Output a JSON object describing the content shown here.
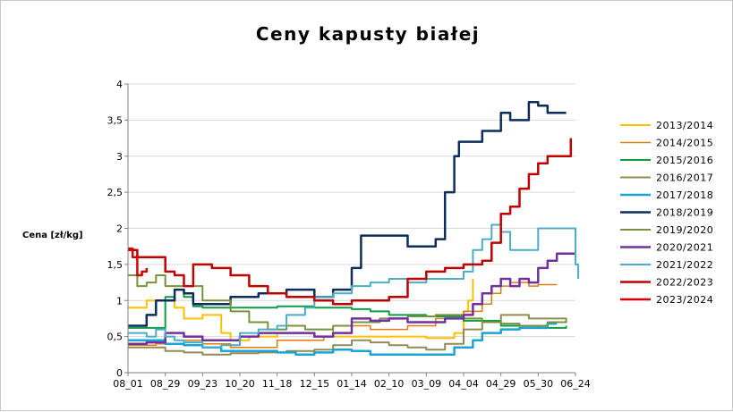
{
  "chart_data": {
    "type": "line",
    "title": "Ceny kapusty białej",
    "xlabel": "",
    "ylabel": "Cena [zł/kg]",
    "ylim": [
      0,
      4
    ],
    "yticks": [
      0,
      0.5,
      1,
      1.5,
      2,
      2.5,
      3,
      3.5,
      4
    ],
    "ytick_labels": [
      "0",
      "0,5",
      "1",
      "1,5",
      "2",
      "2,5",
      "3",
      "3,5",
      "4"
    ],
    "xticks": [
      0,
      4,
      8,
      12,
      16,
      20,
      24,
      28,
      32,
      36,
      40,
      44,
      48
    ],
    "xtick_labels": [
      "08_01",
      "08_29",
      "09_23",
      "10_20",
      "11_18",
      "12_15",
      "01_14",
      "02_10",
      "03_09",
      "04_04",
      "04_29",
      "05_30",
      "06_24"
    ],
    "grid": true,
    "legend_position": "right",
    "series": [
      {
        "name": "2013/2014",
        "color": "#ffc000",
        "width": 2,
        "points": [
          [
            0,
            0.9
          ],
          [
            1.5,
            0.9
          ],
          [
            2,
            1.0
          ],
          [
            4,
            1.0
          ],
          [
            5,
            0.9
          ],
          [
            6,
            0.75
          ],
          [
            8,
            0.8
          ],
          [
            10,
            0.55
          ],
          [
            11,
            0.45
          ],
          [
            13,
            0.5
          ],
          [
            16,
            0.55
          ],
          [
            20,
            0.5
          ],
          [
            24,
            0.5
          ],
          [
            28,
            0.5
          ],
          [
            32,
            0.48
          ],
          [
            35,
            0.55
          ],
          [
            36,
            0.85
          ],
          [
            36.5,
            1.0
          ],
          [
            37,
            1.3
          ]
        ]
      },
      {
        "name": "2014/2015",
        "color": "#e07b12",
        "width": 1.5,
        "points": [
          [
            0,
            0.38
          ],
          [
            3,
            0.4
          ],
          [
            6,
            0.45
          ],
          [
            8,
            0.4
          ],
          [
            11,
            0.35
          ],
          [
            13,
            0.35
          ],
          [
            16,
            0.45
          ],
          [
            21,
            0.5
          ],
          [
            22,
            0.65
          ],
          [
            24,
            0.65
          ],
          [
            26,
            0.6
          ],
          [
            30,
            0.65
          ],
          [
            33,
            0.75
          ],
          [
            36,
            0.85
          ],
          [
            38,
            0.95
          ],
          [
            39,
            1.1
          ],
          [
            40,
            1.2
          ],
          [
            41,
            1.25
          ],
          [
            43,
            1.2
          ],
          [
            44,
            1.22
          ],
          [
            46,
            1.22
          ]
        ]
      },
      {
        "name": "2015/2016",
        "color": "#119b45",
        "width": 2,
        "points": [
          [
            0,
            0.62
          ],
          [
            4,
            1.05
          ],
          [
            5,
            1.15
          ],
          [
            6,
            1.05
          ],
          [
            7,
            0.92
          ],
          [
            8,
            0.9
          ],
          [
            10,
            0.9
          ],
          [
            11,
            0.9
          ],
          [
            13,
            0.9
          ],
          [
            16,
            0.92
          ],
          [
            20,
            0.9
          ],
          [
            22,
            0.9
          ],
          [
            24,
            0.88
          ],
          [
            26,
            0.85
          ],
          [
            28,
            0.8
          ],
          [
            32,
            0.78
          ],
          [
            36,
            0.72
          ],
          [
            40,
            0.65
          ],
          [
            44,
            0.62
          ],
          [
            47,
            0.65
          ]
        ]
      },
      {
        "name": "2016/2017",
        "color": "#948a54",
        "width": 2,
        "points": [
          [
            0,
            0.35
          ],
          [
            4,
            0.3
          ],
          [
            6,
            0.28
          ],
          [
            8,
            0.25
          ],
          [
            11,
            0.27
          ],
          [
            14,
            0.28
          ],
          [
            17,
            0.3
          ],
          [
            20,
            0.32
          ],
          [
            22,
            0.38
          ],
          [
            24,
            0.45
          ],
          [
            26,
            0.42
          ],
          [
            28,
            0.38
          ],
          [
            30,
            0.35
          ],
          [
            32,
            0.32
          ],
          [
            34,
            0.4
          ],
          [
            36,
            0.6
          ],
          [
            38,
            0.7
          ],
          [
            40,
            0.8
          ],
          [
            43,
            0.75
          ],
          [
            45,
            0.75
          ],
          [
            47,
            0.7
          ]
        ]
      },
      {
        "name": "2017/2018",
        "color": "#1aa4d6",
        "width": 2.5,
        "points": [
          [
            0,
            0.45
          ],
          [
            2,
            0.45
          ],
          [
            4,
            0.4
          ],
          [
            6,
            0.38
          ],
          [
            8,
            0.35
          ],
          [
            10,
            0.3
          ],
          [
            12,
            0.3
          ],
          [
            14,
            0.3
          ],
          [
            16,
            0.28
          ],
          [
            18,
            0.25
          ],
          [
            20,
            0.28
          ],
          [
            22,
            0.32
          ],
          [
            24,
            0.3
          ],
          [
            26,
            0.25
          ],
          [
            30,
            0.25
          ],
          [
            33,
            0.25
          ],
          [
            35,
            0.35
          ],
          [
            37,
            0.45
          ],
          [
            38,
            0.55
          ],
          [
            40,
            0.6
          ],
          [
            42,
            0.62
          ],
          [
            45,
            0.68
          ],
          [
            46,
            0.68
          ]
        ]
      },
      {
        "name": "2018/2019",
        "color": "#0f2d5c",
        "width": 2.5,
        "points": [
          [
            0,
            0.65
          ],
          [
            1,
            0.65
          ],
          [
            2,
            0.8
          ],
          [
            3,
            1.0
          ],
          [
            5,
            1.15
          ],
          [
            6,
            1.1
          ],
          [
            7,
            0.95
          ],
          [
            9,
            0.95
          ],
          [
            11,
            1.05
          ],
          [
            14,
            1.1
          ],
          [
            17,
            1.15
          ],
          [
            19,
            1.15
          ],
          [
            20,
            1.05
          ],
          [
            22,
            1.15
          ],
          [
            24,
            1.45
          ],
          [
            25,
            1.9
          ],
          [
            27,
            1.9
          ],
          [
            29,
            1.9
          ],
          [
            30,
            1.75
          ],
          [
            32,
            1.75
          ],
          [
            33,
            1.85
          ],
          [
            34,
            2.5
          ],
          [
            35,
            3.0
          ],
          [
            35.5,
            3.2
          ],
          [
            36,
            3.2
          ],
          [
            38,
            3.35
          ],
          [
            40,
            3.6
          ],
          [
            41,
            3.5
          ],
          [
            42,
            3.5
          ],
          [
            43,
            3.75
          ],
          [
            44,
            3.7
          ],
          [
            45,
            3.6
          ],
          [
            47,
            3.6
          ]
        ]
      },
      {
        "name": "2019/2020",
        "color": "#76933c",
        "width": 2,
        "points": [
          [
            0,
            1.35
          ],
          [
            1,
            1.2
          ],
          [
            2,
            1.25
          ],
          [
            3,
            1.35
          ],
          [
            4,
            1.2
          ],
          [
            6,
            1.2
          ],
          [
            8,
            1.0
          ],
          [
            11,
            0.85
          ],
          [
            13,
            0.7
          ],
          [
            15,
            0.6
          ],
          [
            17,
            0.65
          ],
          [
            19,
            0.6
          ],
          [
            22,
            0.65
          ],
          [
            24,
            0.7
          ],
          [
            27,
            0.75
          ],
          [
            30,
            0.78
          ],
          [
            33,
            0.8
          ],
          [
            36,
            0.75
          ],
          [
            38,
            0.7
          ],
          [
            40,
            0.68
          ],
          [
            42,
            0.65
          ],
          [
            45,
            0.7
          ],
          [
            47,
            0.72
          ]
        ]
      },
      {
        "name": "2020/2021",
        "color": "#7030a0",
        "width": 2.5,
        "points": [
          [
            0,
            0.4
          ],
          [
            2,
            0.42
          ],
          [
            4,
            0.55
          ],
          [
            6,
            0.5
          ],
          [
            8,
            0.45
          ],
          [
            10,
            0.45
          ],
          [
            12,
            0.5
          ],
          [
            14,
            0.55
          ],
          [
            16,
            0.55
          ],
          [
            18,
            0.55
          ],
          [
            20,
            0.5
          ],
          [
            22,
            0.55
          ],
          [
            24,
            0.75
          ],
          [
            26,
            0.72
          ],
          [
            28,
            0.75
          ],
          [
            30,
            0.7
          ],
          [
            32,
            0.7
          ],
          [
            34,
            0.75
          ],
          [
            36,
            0.8
          ],
          [
            37,
            0.95
          ],
          [
            38,
            1.1
          ],
          [
            39,
            1.2
          ],
          [
            40,
            1.3
          ],
          [
            41,
            1.2
          ],
          [
            42,
            1.3
          ],
          [
            43,
            1.25
          ],
          [
            44,
            1.45
          ],
          [
            45,
            1.55
          ],
          [
            46,
            1.65
          ],
          [
            48,
            1.65
          ]
        ]
      },
      {
        "name": "2021/2022",
        "color": "#4bacc6",
        "width": 2,
        "points": [
          [
            0,
            0.55
          ],
          [
            2,
            0.5
          ],
          [
            3,
            0.6
          ],
          [
            4,
            0.5
          ],
          [
            5,
            0.45
          ],
          [
            6,
            0.42
          ],
          [
            8,
            0.35
          ],
          [
            10,
            0.38
          ],
          [
            12,
            0.55
          ],
          [
            14,
            0.6
          ],
          [
            16,
            0.65
          ],
          [
            17,
            0.8
          ],
          [
            19,
            0.9
          ],
          [
            20,
            1.05
          ],
          [
            22,
            1.1
          ],
          [
            24,
            1.2
          ],
          [
            26,
            1.25
          ],
          [
            28,
            1.3
          ],
          [
            30,
            1.25
          ],
          [
            32,
            1.3
          ],
          [
            34,
            1.3
          ],
          [
            36,
            1.4
          ],
          [
            37,
            1.7
          ],
          [
            38,
            1.85
          ],
          [
            39,
            2.05
          ],
          [
            40,
            1.95
          ],
          [
            41,
            1.7
          ],
          [
            43,
            1.7
          ],
          [
            44,
            2.0
          ],
          [
            46,
            2.0
          ],
          [
            47,
            2.0
          ],
          [
            48,
            1.5
          ],
          [
            48.3,
            1.3
          ]
        ]
      },
      {
        "name": "2022/2023",
        "color": "#c00000",
        "width": 2.5,
        "points": [
          [
            0,
            1.7
          ],
          [
            1,
            1.6
          ],
          [
            3,
            1.6
          ],
          [
            4,
            1.4
          ],
          [
            5,
            1.35
          ],
          [
            6,
            1.2
          ],
          [
            7,
            1.5
          ],
          [
            9,
            1.45
          ],
          [
            11,
            1.35
          ],
          [
            13,
            1.2
          ],
          [
            15,
            1.1
          ],
          [
            17,
            1.05
          ],
          [
            20,
            1.0
          ],
          [
            22,
            0.95
          ],
          [
            24,
            1.0
          ],
          [
            26,
            1.0
          ],
          [
            28,
            1.05
          ],
          [
            30,
            1.3
          ],
          [
            32,
            1.4
          ],
          [
            34,
            1.45
          ],
          [
            36,
            1.5
          ],
          [
            38,
            1.55
          ],
          [
            39,
            1.8
          ],
          [
            40,
            2.2
          ],
          [
            41,
            2.3
          ],
          [
            42,
            2.55
          ],
          [
            43,
            2.75
          ],
          [
            44,
            2.9
          ],
          [
            45,
            3.0
          ],
          [
            46,
            3.0
          ],
          [
            47,
            3.0
          ],
          [
            47.5,
            3.25
          ]
        ]
      },
      {
        "name": "2023/2024",
        "color": "#d40000",
        "width": 2.5,
        "points": [
          [
            0,
            1.72
          ],
          [
            0.5,
            1.6
          ],
          [
            1,
            1.35
          ],
          [
            1.5,
            1.4
          ],
          [
            2,
            1.45
          ]
        ]
      }
    ]
  }
}
